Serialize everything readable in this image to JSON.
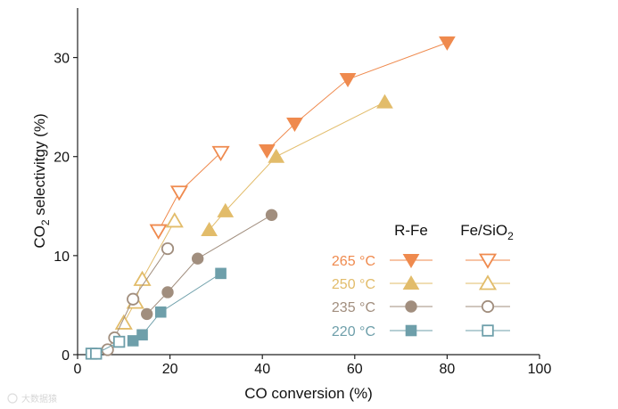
{
  "chart_data": {
    "type": "scatter",
    "title": "",
    "xlabel": "CO conversion (%)",
    "ylabel_main": "CO",
    "ylabel_sub": "2",
    "ylabel_rest": " selectivitgy (%)",
    "xlim": [
      0,
      100
    ],
    "ylim": [
      0,
      35
    ],
    "x_ticks": [
      0,
      20,
      40,
      60,
      80,
      100
    ],
    "y_ticks": [
      0,
      10,
      20,
      30
    ],
    "legend": {
      "placement": "bottom-right",
      "col_header_1": "R-Fe",
      "col_header_2_main": "Fe/SiO",
      "col_header_2_sub": "2"
    },
    "series": [
      {
        "name": "265 °C",
        "temp_label": "265 °C",
        "color": "#EF8A4E",
        "marker": "triangle-down",
        "r_fe": [
          [
            41,
            20.6
          ],
          [
            47,
            23.3
          ],
          [
            58.5,
            27.8
          ],
          [
            80,
            31.5
          ]
        ],
        "fe_sio2": [
          [
            17.5,
            12.5
          ],
          [
            22,
            16.4
          ],
          [
            31,
            20.4
          ]
        ]
      },
      {
        "name": "250 °C",
        "temp_label": "250 °C",
        "color": "#E2BC6A",
        "marker": "triangle-up",
        "r_fe": [
          [
            28.5,
            12.6
          ],
          [
            32,
            14.5
          ],
          [
            43,
            20
          ],
          [
            66.5,
            25.5
          ]
        ],
        "fe_sio2": [
          [
            10,
            3.2
          ],
          [
            12.5,
            5.3
          ],
          [
            14,
            7.6
          ],
          [
            21,
            13.5
          ]
        ]
      },
      {
        "name": "235 °C",
        "temp_label": "235 °C",
        "color": "#A18E7E",
        "marker": "circle",
        "r_fe": [
          [
            15,
            4.1
          ],
          [
            19.5,
            6.3
          ],
          [
            26,
            9.7
          ],
          [
            42,
            14.1
          ]
        ],
        "fe_sio2": [
          [
            6.5,
            0.5
          ],
          [
            8,
            1.7
          ],
          [
            12,
            5.6
          ],
          [
            19.5,
            10.7
          ]
        ]
      },
      {
        "name": "220 °C",
        "temp_label": "220 °C",
        "color": "#6E9FAA",
        "marker": "square",
        "r_fe": [
          [
            12,
            1.4
          ],
          [
            14,
            2.0
          ],
          [
            18,
            4.3
          ],
          [
            31,
            8.2
          ]
        ],
        "fe_sio2": [
          [
            3,
            0.1
          ],
          [
            4,
            0.1
          ],
          [
            9,
            1.3
          ]
        ]
      }
    ]
  },
  "watermark": "大数据猿"
}
